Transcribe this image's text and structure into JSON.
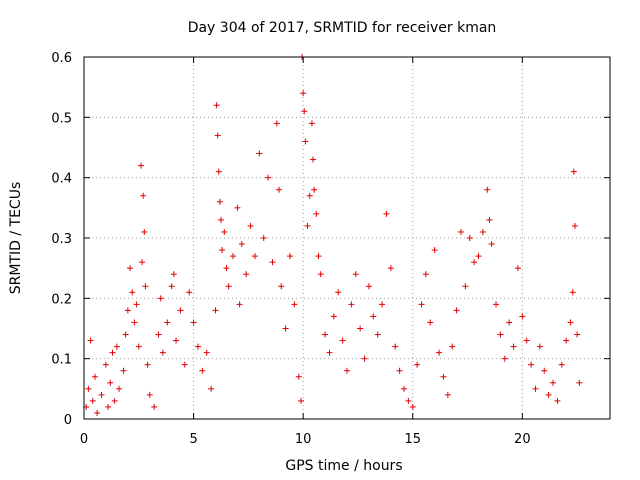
{
  "chart_data": {
    "type": "scatter",
    "title": "Day 304 of 2017, SRMTID for receiver kman",
    "xlabel": "GPS time / hours",
    "ylabel": "SRMTID / TECUs",
    "xlim": [
      0,
      24
    ],
    "ylim": [
      0,
      0.6
    ],
    "x_ticks": [
      0,
      5,
      10,
      15,
      20
    ],
    "y_ticks": [
      0,
      0.1,
      0.2,
      0.3,
      0.4,
      0.5,
      0.6
    ],
    "x_tick_labels": [
      "0",
      "5",
      "10",
      "15",
      "20"
    ],
    "y_tick_labels": [
      "0",
      "0.1",
      "0.2",
      "0.3",
      "0.4",
      "0.5",
      "0.6"
    ],
    "grid": true,
    "marker": "+",
    "color": "#e00000",
    "series": [
      {
        "name": "SRMTID",
        "points": [
          [
            0.1,
            0.02
          ],
          [
            0.2,
            0.05
          ],
          [
            0.3,
            0.13
          ],
          [
            0.4,
            0.03
          ],
          [
            0.5,
            0.07
          ],
          [
            0.6,
            0.01
          ],
          [
            0.8,
            0.04
          ],
          [
            1.0,
            0.09
          ],
          [
            1.1,
            0.02
          ],
          [
            1.2,
            0.06
          ],
          [
            1.3,
            0.11
          ],
          [
            1.4,
            0.03
          ],
          [
            1.5,
            0.12
          ],
          [
            1.6,
            0.05
          ],
          [
            1.8,
            0.08
          ],
          [
            1.9,
            0.14
          ],
          [
            2.0,
            0.18
          ],
          [
            2.1,
            0.25
          ],
          [
            2.2,
            0.21
          ],
          [
            2.3,
            0.16
          ],
          [
            2.4,
            0.19
          ],
          [
            2.5,
            0.12
          ],
          [
            2.6,
            0.42
          ],
          [
            2.65,
            0.26
          ],
          [
            2.7,
            0.37
          ],
          [
            2.75,
            0.31
          ],
          [
            2.8,
            0.22
          ],
          [
            2.9,
            0.09
          ],
          [
            3.0,
            0.04
          ],
          [
            3.2,
            0.02
          ],
          [
            3.4,
            0.14
          ],
          [
            3.5,
            0.2
          ],
          [
            3.6,
            0.11
          ],
          [
            3.8,
            0.16
          ],
          [
            4.0,
            0.22
          ],
          [
            4.1,
            0.24
          ],
          [
            4.2,
            0.13
          ],
          [
            4.4,
            0.18
          ],
          [
            4.6,
            0.09
          ],
          [
            4.8,
            0.21
          ],
          [
            5.0,
            0.16
          ],
          [
            5.2,
            0.12
          ],
          [
            5.4,
            0.08
          ],
          [
            5.6,
            0.11
          ],
          [
            5.8,
            0.05
          ],
          [
            6.0,
            0.18
          ],
          [
            6.05,
            0.52
          ],
          [
            6.1,
            0.47
          ],
          [
            6.15,
            0.41
          ],
          [
            6.2,
            0.36
          ],
          [
            6.25,
            0.33
          ],
          [
            6.3,
            0.28
          ],
          [
            6.4,
            0.31
          ],
          [
            6.5,
            0.25
          ],
          [
            6.6,
            0.22
          ],
          [
            6.8,
            0.27
          ],
          [
            7.0,
            0.35
          ],
          [
            7.1,
            0.19
          ],
          [
            7.2,
            0.29
          ],
          [
            7.4,
            0.24
          ],
          [
            7.6,
            0.32
          ],
          [
            7.8,
            0.27
          ],
          [
            8.0,
            0.44
          ],
          [
            8.2,
            0.3
          ],
          [
            8.4,
            0.4
          ],
          [
            8.6,
            0.26
          ],
          [
            8.8,
            0.49
          ],
          [
            8.9,
            0.38
          ],
          [
            9.0,
            0.22
          ],
          [
            9.2,
            0.15
          ],
          [
            9.4,
            0.27
          ],
          [
            9.6,
            0.19
          ],
          [
            9.8,
            0.07
          ],
          [
            9.9,
            0.03
          ],
          [
            9.95,
            0.6
          ],
          [
            10.0,
            0.54
          ],
          [
            10.05,
            0.51
          ],
          [
            10.1,
            0.46
          ],
          [
            10.2,
            0.32
          ],
          [
            10.3,
            0.37
          ],
          [
            10.4,
            0.49
          ],
          [
            10.45,
            0.43
          ],
          [
            10.5,
            0.38
          ],
          [
            10.6,
            0.34
          ],
          [
            10.7,
            0.27
          ],
          [
            10.8,
            0.24
          ],
          [
            11.0,
            0.14
          ],
          [
            11.2,
            0.11
          ],
          [
            11.4,
            0.17
          ],
          [
            11.6,
            0.21
          ],
          [
            11.8,
            0.13
          ],
          [
            12.0,
            0.08
          ],
          [
            12.2,
            0.19
          ],
          [
            12.4,
            0.24
          ],
          [
            12.6,
            0.15
          ],
          [
            12.8,
            0.1
          ],
          [
            13.0,
            0.22
          ],
          [
            13.2,
            0.17
          ],
          [
            13.4,
            0.14
          ],
          [
            13.6,
            0.19
          ],
          [
            13.8,
            0.34
          ],
          [
            14.0,
            0.25
          ],
          [
            14.2,
            0.12
          ],
          [
            14.4,
            0.08
          ],
          [
            14.6,
            0.05
          ],
          [
            14.8,
            0.03
          ],
          [
            15.0,
            0.02
          ],
          [
            15.2,
            0.09
          ],
          [
            15.4,
            0.19
          ],
          [
            15.6,
            0.24
          ],
          [
            15.8,
            0.16
          ],
          [
            16.0,
            0.28
          ],
          [
            16.2,
            0.11
          ],
          [
            16.4,
            0.07
          ],
          [
            16.6,
            0.04
          ],
          [
            16.8,
            0.12
          ],
          [
            17.0,
            0.18
          ],
          [
            17.2,
            0.31
          ],
          [
            17.4,
            0.22
          ],
          [
            17.6,
            0.3
          ],
          [
            17.8,
            0.26
          ],
          [
            18.0,
            0.27
          ],
          [
            18.2,
            0.31
          ],
          [
            18.4,
            0.38
          ],
          [
            18.5,
            0.33
          ],
          [
            18.6,
            0.29
          ],
          [
            18.8,
            0.19
          ],
          [
            19.0,
            0.14
          ],
          [
            19.2,
            0.1
          ],
          [
            19.4,
            0.16
          ],
          [
            19.6,
            0.12
          ],
          [
            19.8,
            0.25
          ],
          [
            20.0,
            0.17
          ],
          [
            20.2,
            0.13
          ],
          [
            20.4,
            0.09
          ],
          [
            20.6,
            0.05
          ],
          [
            20.8,
            0.12
          ],
          [
            21.0,
            0.08
          ],
          [
            21.2,
            0.04
          ],
          [
            21.4,
            0.06
          ],
          [
            21.6,
            0.03
          ],
          [
            21.8,
            0.09
          ],
          [
            22.0,
            0.13
          ],
          [
            22.2,
            0.16
          ],
          [
            22.3,
            0.21
          ],
          [
            22.35,
            0.41
          ],
          [
            22.4,
            0.32
          ],
          [
            22.5,
            0.14
          ],
          [
            22.6,
            0.06
          ]
        ]
      }
    ]
  }
}
